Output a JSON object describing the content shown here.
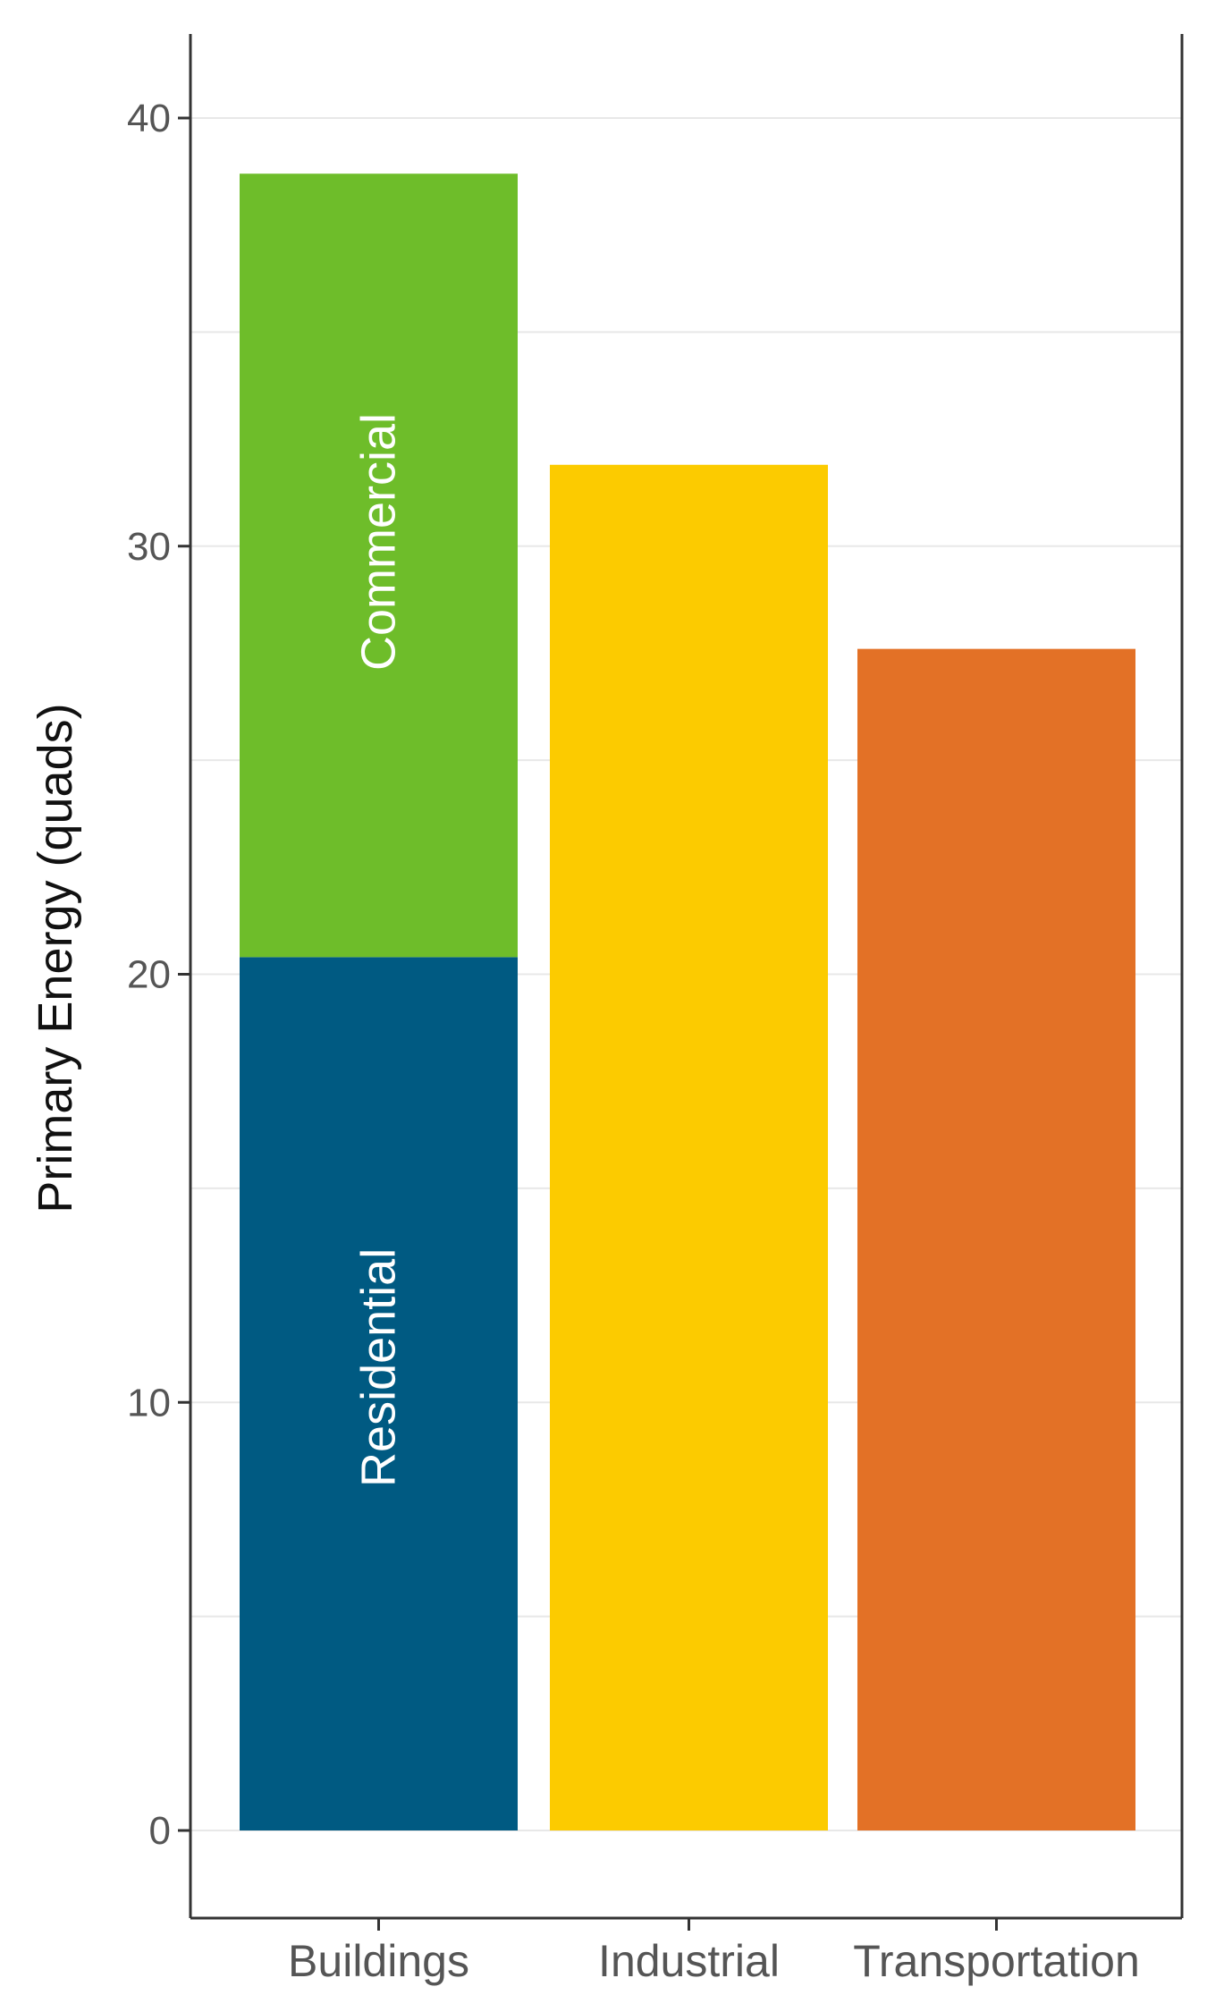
{
  "chart_data": {
    "type": "bar",
    "stacked": true,
    "categories": [
      "Buildings",
      "Industrial",
      "Transportation"
    ],
    "series": [
      {
        "name": "Residential",
        "values": [
          20.4,
          0,
          0
        ],
        "color": "#005a82",
        "segment_labels": [
          "Residential",
          "",
          ""
        ]
      },
      {
        "name": "Commercial",
        "values": [
          18.3,
          0,
          0
        ],
        "color": "#6ebd2a",
        "segment_labels": [
          "Commercial",
          "",
          ""
        ]
      },
      {
        "name": "Industrial",
        "values": [
          0,
          31.9,
          0
        ],
        "color": "#fccb00",
        "segment_labels": [
          "",
          "",
          ""
        ]
      },
      {
        "name": "Transportation",
        "values": [
          0,
          0,
          27.6
        ],
        "color": "#e37126",
        "segment_labels": [
          "",
          "",
          ""
        ]
      }
    ],
    "ylabel": "Primary Energy (quads)",
    "xlabel": "",
    "ylim": [
      -2,
      42
    ],
    "yticks": [
      0,
      10,
      20,
      30,
      40
    ],
    "ytick_labels": [
      "0",
      "10",
      "20",
      "30",
      "40"
    ],
    "grid": true,
    "gridline_color": "#e8e8e8",
    "axis_color": "#333333"
  }
}
